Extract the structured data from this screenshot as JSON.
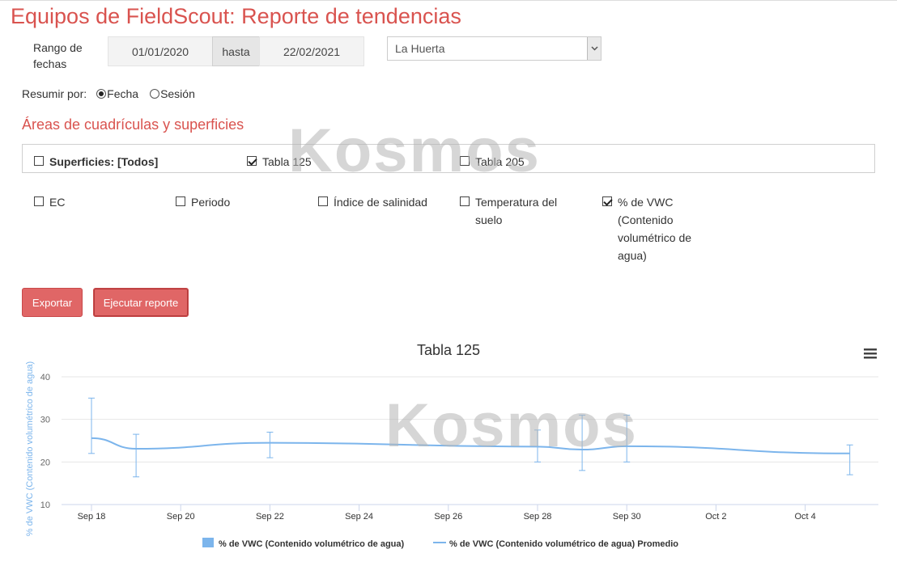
{
  "page": {
    "title": "Equipos de FieldScout: Reporte de tendencias"
  },
  "filters": {
    "date_range_label": "Rango de fechas",
    "date_from": "01/01/2020",
    "date_separator": "hasta",
    "date_to": "22/02/2021",
    "location_selected": "La Huerta",
    "summarize_label": "Resumir por:",
    "summarize_options": [
      {
        "label": "Fecha",
        "selected": true
      },
      {
        "label": "Sesión",
        "selected": false
      }
    ]
  },
  "areas": {
    "heading": "Áreas de cuadrículas y superficies",
    "surfaces": [
      {
        "label": "Superficies: [Todos]",
        "checked": false
      },
      {
        "label": "Tabla 125",
        "checked": true
      },
      {
        "label": "Tabla 205",
        "checked": false
      }
    ],
    "metrics": [
      {
        "label": "EC",
        "checked": false
      },
      {
        "label": "Periodo",
        "checked": false
      },
      {
        "label": "Índice de salinidad",
        "checked": false
      },
      {
        "label": "Temperatura del suelo",
        "checked": false
      },
      {
        "label": "% de VWC (Contenido volumétrico de agua)",
        "checked": true
      }
    ]
  },
  "actions": {
    "export_label": "Exportar",
    "run_label": "Ejecutar reporte"
  },
  "watermark": "Kosmos",
  "chart_data": {
    "type": "line",
    "title": "Tabla 125",
    "ylabel": "% de VWC (Contenido volumétrico de agua)",
    "xlabel": "",
    "ylim": [
      10,
      40
    ],
    "yticks": [
      10,
      20,
      30,
      40
    ],
    "xticks": [
      {
        "label": "Sep 18",
        "day": 18
      },
      {
        "label": "Sep 20",
        "day": 20
      },
      {
        "label": "Sep 22",
        "day": 22
      },
      {
        "label": "Sep 24",
        "day": 24
      },
      {
        "label": "Sep 26",
        "day": 26
      },
      {
        "label": "Sep 28",
        "day": 28
      },
      {
        "label": "Sep 30",
        "day": 30
      },
      {
        "label": "Oct 2",
        "day": 32
      },
      {
        "label": "Oct 4",
        "day": 34
      }
    ],
    "grid": true,
    "legend_position": "bottom",
    "series": [
      {
        "name": "% de VWC (Contenido volumétrico de agua)",
        "kind": "errorbar",
        "color": "#7cb5ec",
        "points": [
          {
            "day": 18,
            "low": 22,
            "high": 35
          },
          {
            "day": 19,
            "low": 16.5,
            "high": 26.5
          },
          {
            "day": 22,
            "low": 21,
            "high": 27
          },
          {
            "day": 28,
            "low": 20,
            "high": 27.5
          },
          {
            "day": 29,
            "low": 18,
            "high": 31
          },
          {
            "day": 30,
            "low": 20,
            "high": 31
          },
          {
            "day": 35,
            "low": 17,
            "high": 24
          }
        ]
      },
      {
        "name": "% de VWC (Contenido volumétrico de agua) Promedio",
        "kind": "line",
        "color": "#7cb5ec",
        "points": [
          {
            "day": 18,
            "value": 25.6
          },
          {
            "day": 19,
            "value": 23.1
          },
          {
            "day": 22,
            "value": 24.5
          },
          {
            "day": 28,
            "value": 23.6
          },
          {
            "day": 29,
            "value": 22.9
          },
          {
            "day": 30,
            "value": 23.7
          },
          {
            "day": 35,
            "value": 22.0
          }
        ]
      }
    ]
  }
}
